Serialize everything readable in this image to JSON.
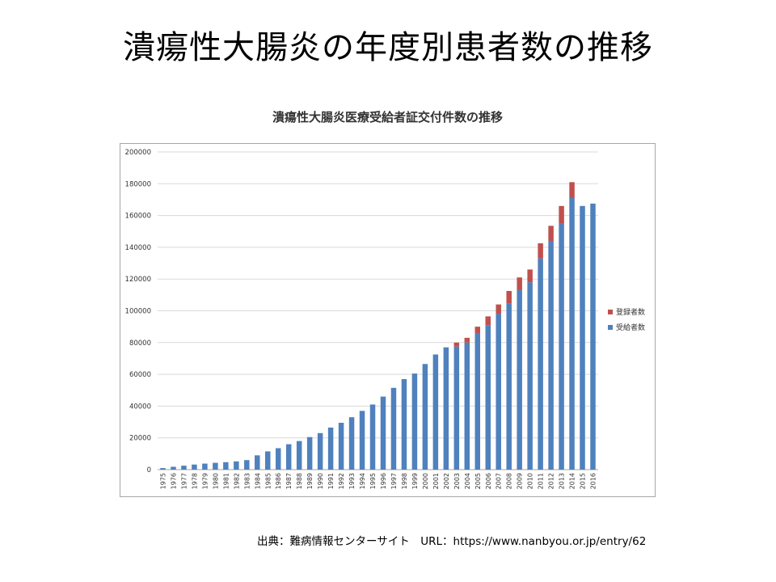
{
  "slide_title": "潰瘍性大腸炎の年度別患者数の推移",
  "source_text": "出典：難病情報センターサイト　URL：https://www.nanbyou.or.jp/entry/62",
  "chart_data": {
    "type": "bar",
    "stacked": true,
    "title": "潰瘍性大腸炎医療受給者証交付件数の推移",
    "xlabel": "",
    "ylabel": "",
    "ylim": [
      0,
      200000
    ],
    "yticks": [
      0,
      20000,
      40000,
      60000,
      80000,
      100000,
      120000,
      140000,
      160000,
      180000,
      200000
    ],
    "grid": true,
    "legend_position": "right",
    "categories": [
      "1975",
      "1976",
      "1977",
      "1978",
      "1979",
      "1980",
      "1981",
      "1982",
      "1983",
      "1984",
      "1985",
      "1986",
      "1987",
      "1988",
      "1989",
      "1990",
      "1991",
      "1992",
      "1993",
      "1994",
      "1995",
      "1996",
      "1997",
      "1998",
      "1999",
      "2000",
      "2001",
      "2002",
      "2003",
      "2004",
      "2005",
      "2006",
      "2007",
      "2008",
      "2009",
      "2010",
      "2011",
      "2012",
      "2013",
      "2014",
      "2015",
      "2016"
    ],
    "series": [
      {
        "name": "受給者数",
        "color": "#4f81bd",
        "values": [
          1000,
          1800,
          2500,
          3200,
          3800,
          4300,
          4700,
          5200,
          6000,
          9000,
          11500,
          13500,
          16000,
          18000,
          20500,
          23000,
          26500,
          29500,
          33000,
          37000,
          41000,
          46000,
          51500,
          57000,
          60500,
          66500,
          72500,
          77000,
          77500,
          80000,
          86000,
          91000,
          98000,
          104500,
          113000,
          118000,
          133000,
          144000,
          155000,
          171000,
          166000,
          167500
        ]
      },
      {
        "name": "登録者数",
        "color": "#c0504d",
        "values": [
          0,
          0,
          0,
          0,
          0,
          0,
          0,
          0,
          0,
          0,
          0,
          0,
          0,
          0,
          0,
          0,
          0,
          0,
          0,
          0,
          0,
          0,
          0,
          0,
          0,
          0,
          0,
          0,
          2500,
          3000,
          4000,
          5500,
          6000,
          8000,
          8000,
          8000,
          9500,
          9500,
          11000,
          10000,
          0,
          0
        ]
      }
    ]
  }
}
